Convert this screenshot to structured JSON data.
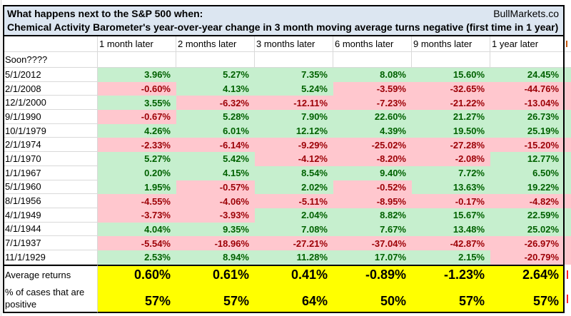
{
  "header": {
    "title_line1": "What happens next to the S&P 500 when:",
    "brand": "BullMarkets.co",
    "title_line2": "Chemical Activity Barometer's year-over-year change in 3 month moving average turns negative (first time in 1 year)"
  },
  "table": {
    "corner_note": "Soon????",
    "columns": [
      "1 month later",
      "2 months later",
      "3 months later",
      "6 months later",
      "9 months later",
      "1 year later"
    ],
    "rows": [
      {
        "date": "5/1/2012",
        "values": [
          "3.96%",
          "5.27%",
          "7.35%",
          "8.08%",
          "15.60%",
          "24.45%"
        ]
      },
      {
        "date": "2/1/2008",
        "values": [
          "-0.60%",
          "4.13%",
          "5.24%",
          "-3.59%",
          "-32.65%",
          "-44.76%"
        ]
      },
      {
        "date": "12/1/2000",
        "values": [
          "3.55%",
          "-6.32%",
          "-12.11%",
          "-7.23%",
          "-21.22%",
          "-13.04%"
        ]
      },
      {
        "date": "9/1/1990",
        "values": [
          "-0.67%",
          "5.28%",
          "7.90%",
          "22.60%",
          "21.27%",
          "26.73%"
        ]
      },
      {
        "date": "10/1/1979",
        "values": [
          "4.26%",
          "6.01%",
          "12.12%",
          "4.39%",
          "19.50%",
          "25.19%"
        ]
      },
      {
        "date": "2/1/1974",
        "values": [
          "-2.33%",
          "-6.14%",
          "-9.29%",
          "-25.02%",
          "-27.28%",
          "-15.20%"
        ]
      },
      {
        "date": "1/1/1970",
        "values": [
          "5.27%",
          "5.42%",
          "-4.12%",
          "-8.20%",
          "-2.08%",
          "12.77%"
        ]
      },
      {
        "date": "1/1/1967",
        "values": [
          "0.20%",
          "4.15%",
          "8.54%",
          "9.40%",
          "7.72%",
          "6.50%"
        ]
      },
      {
        "date": "5/1/1960",
        "values": [
          "1.95%",
          "-0.57%",
          "2.02%",
          "-0.52%",
          "13.63%",
          "19.22%"
        ]
      },
      {
        "date": "8/1/1956",
        "values": [
          "-4.55%",
          "-4.06%",
          "-5.11%",
          "-8.95%",
          "-0.17%",
          "-4.82%"
        ]
      },
      {
        "date": "4/1/1949",
        "values": [
          "-3.73%",
          "-3.93%",
          "2.04%",
          "8.82%",
          "15.67%",
          "22.59%"
        ]
      },
      {
        "date": "4/1/1944",
        "values": [
          "4.04%",
          "9.35%",
          "7.08%",
          "7.67%",
          "13.48%",
          "25.02%"
        ]
      },
      {
        "date": "7/1/1937",
        "values": [
          "-5.54%",
          "-18.96%",
          "-27.21%",
          "-37.04%",
          "-42.87%",
          "-26.97%"
        ]
      },
      {
        "date": "11/1/1929",
        "values": [
          "2.53%",
          "8.94%",
          "11.28%",
          "17.07%",
          "2.15%",
          "-20.79%"
        ]
      }
    ],
    "summary": {
      "avg_label": "Average returns",
      "avg_values": [
        "0.60%",
        "0.61%",
        "0.41%",
        "-0.89%",
        "-1.23%",
        "2.64%"
      ],
      "pct_label_line1": "% of cases that are",
      "pct_label_line2": "positive",
      "pct_values": [
        "57%",
        "57%",
        "64%",
        "50%",
        "57%",
        "57%"
      ]
    }
  },
  "colors": {
    "positive_bg": "#c6efce",
    "positive_text": "#006100",
    "negative_bg": "#ffc7ce",
    "negative_text": "#9c0006",
    "summary_bg": "#ffff00",
    "title_bg": "#dce6f1",
    "gridline": "#d9d9d9"
  }
}
